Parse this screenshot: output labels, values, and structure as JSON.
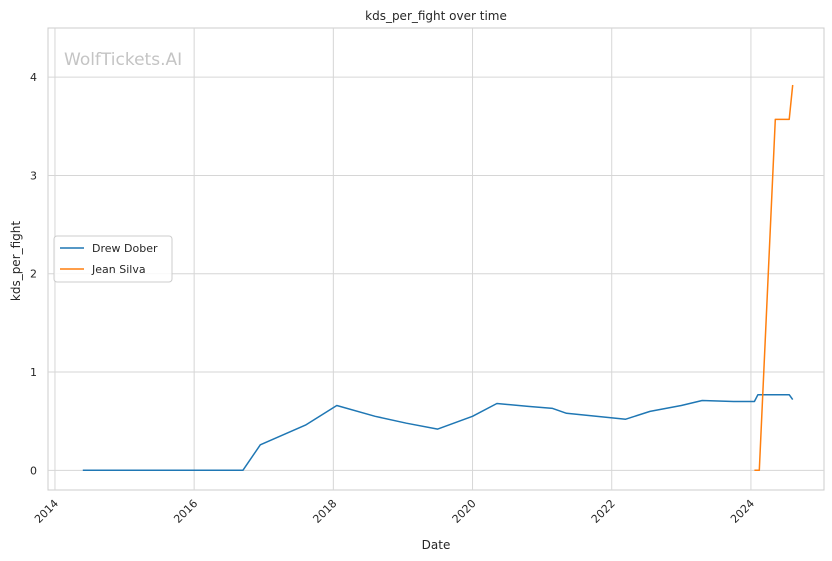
{
  "chart_data": {
    "type": "line",
    "title": "kds_per_fight over time",
    "xlabel": "Date",
    "ylabel": "kds_per_fight",
    "watermark": "WolfTickets.AI",
    "xlim": [
      2013.9,
      2025.05
    ],
    "ylim": [
      -0.2,
      4.5
    ],
    "x_ticks": [
      2014,
      2016,
      2018,
      2020,
      2022,
      2024
    ],
    "y_ticks": [
      0,
      1,
      2,
      3,
      4
    ],
    "grid": true,
    "legend_position": "center-left",
    "series": [
      {
        "name": "Drew Dober",
        "color": "#1f77b4",
        "x": [
          2014.4,
          2016.7,
          2016.95,
          2017.6,
          2018.05,
          2018.6,
          2019.05,
          2019.5,
          2020.0,
          2020.35,
          2020.8,
          2021.15,
          2021.35,
          2022.2,
          2022.55,
          2023.0,
          2023.3,
          2023.75,
          2024.05,
          2024.1,
          2024.4,
          2024.55,
          2024.6
        ],
        "y": [
          0,
          0,
          0.26,
          0.46,
          0.66,
          0.55,
          0.48,
          0.42,
          0.55,
          0.68,
          0.65,
          0.63,
          0.58,
          0.52,
          0.6,
          0.66,
          0.71,
          0.7,
          0.7,
          0.77,
          0.77,
          0.77,
          0.72
        ]
      },
      {
        "name": "Jean Silva",
        "color": "#ff7f0e",
        "x": [
          2024.05,
          2024.12,
          2024.35,
          2024.55,
          2024.6
        ],
        "y": [
          0,
          0,
          3.57,
          3.57,
          3.92
        ]
      }
    ]
  }
}
